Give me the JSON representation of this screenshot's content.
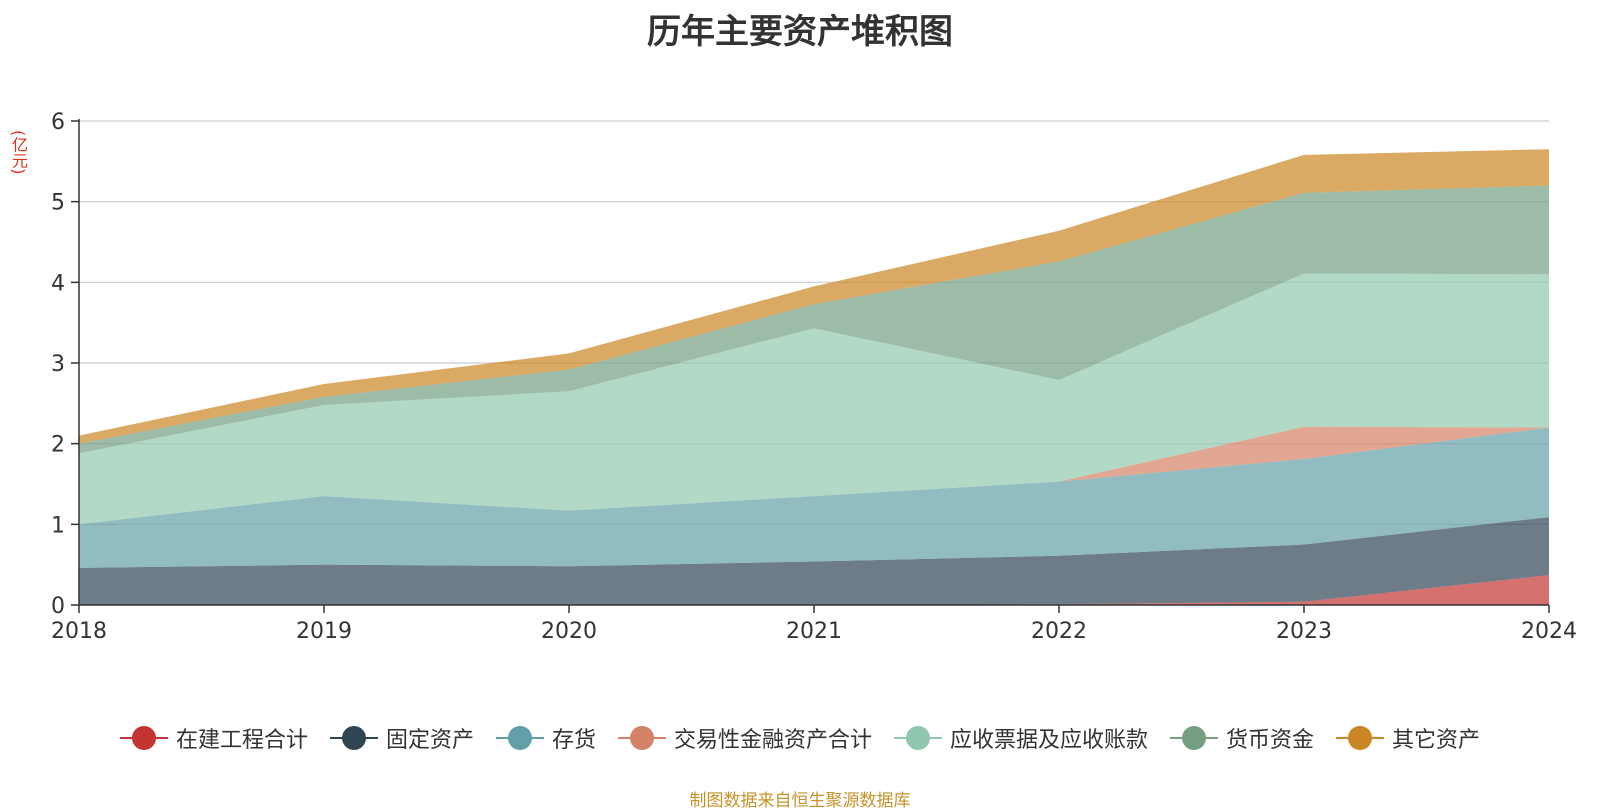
{
  "chart_data": {
    "type": "area",
    "stacked": true,
    "title": "历年主要资产堆积图",
    "unit": "(亿元)",
    "x": [
      "2018",
      "2019",
      "2020",
      "2021",
      "2022",
      "2023",
      "2024"
    ],
    "ylim": [
      0,
      6
    ],
    "yticks": [
      "0",
      "1",
      "2",
      "3",
      "4",
      "5",
      "6"
    ],
    "grid": true,
    "legend_position": "bottom",
    "series": [
      {
        "name": "在建工程合计",
        "color": "#c23531",
        "values": [
          0,
          0,
          0,
          0,
          0.01,
          0.04,
          0.37
        ]
      },
      {
        "name": "固定资产",
        "color": "#2f4554",
        "values": [
          0.46,
          0.5,
          0.48,
          0.54,
          0.6,
          0.71,
          0.72
        ]
      },
      {
        "name": "存货",
        "color": "#61a0a8",
        "values": [
          0.54,
          0.85,
          0.69,
          0.81,
          0.92,
          1.06,
          1.11
        ]
      },
      {
        "name": "交易性金融资产合计",
        "color": "#d48265",
        "values": [
          0,
          0,
          0,
          0,
          0,
          0.4,
          0
        ]
      },
      {
        "name": "应收票据及应收账款",
        "color": "#91c7ae",
        "values": [
          0.88,
          1.13,
          1.48,
          2.08,
          1.26,
          1.9,
          1.9
        ]
      },
      {
        "name": "货币资金",
        "color": "#749f83",
        "values": [
          0.12,
          0.1,
          0.27,
          0.3,
          1.47,
          1.0,
          1.1
        ]
      },
      {
        "name": "其它资产",
        "color": "#ca8622",
        "values": [
          0.1,
          0.16,
          0.2,
          0.22,
          0.38,
          0.47,
          0.45
        ]
      }
    ],
    "source": "制图数据来自恒生聚源数据库"
  }
}
